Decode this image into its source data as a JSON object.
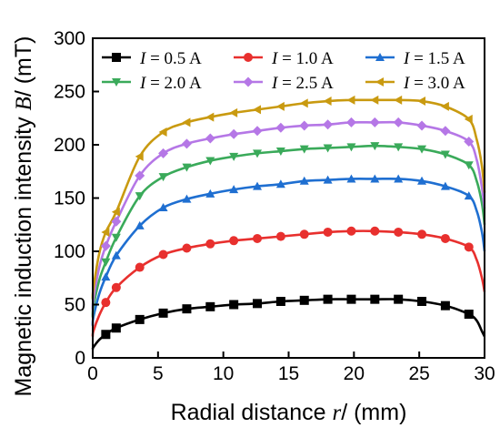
{
  "chart_data": {
    "type": "line",
    "xlabel": {
      "prefix": "Radial distance ",
      "var": "r",
      "suffix": "/ (mm)"
    },
    "ylabel": {
      "prefix": "Magnetic induction intensity ",
      "var": "B",
      "suffix": "/ (mT)"
    },
    "xlim": [
      0,
      30
    ],
    "ylim": [
      0,
      300
    ],
    "xticks": [
      0,
      5,
      10,
      15,
      20,
      25,
      30
    ],
    "yticks": [
      0,
      50,
      100,
      150,
      200,
      250,
      300
    ],
    "grid": false,
    "legend_position": "top",
    "x": [
      0,
      0.05,
      0.5,
      1.0,
      1.8,
      3.6,
      5.4,
      7.2,
      9.0,
      10.8,
      12.6,
      14.4,
      16.2,
      18.0,
      19.8,
      21.6,
      23.4,
      25.2,
      27.0,
      28.8,
      29.4,
      29.8,
      30.0
    ],
    "series": [
      {
        "name": "I = 0.5 A",
        "name_var": "I",
        "name_rest": " = 0.5 A",
        "marker": "square",
        "color": "#000000",
        "values": [
          8,
          10,
          17,
          22,
          28,
          36,
          42,
          46,
          48,
          50,
          51,
          53,
          54,
          55,
          55,
          55,
          55,
          53,
          49,
          41,
          35,
          25,
          20
        ]
      },
      {
        "name": "I = 1.0 A",
        "name_var": "I",
        "name_rest": " = 1.0 A",
        "marker": "circle",
        "color": "#e8302e",
        "values": [
          20,
          25,
          40,
          52,
          66,
          85,
          97,
          103,
          107,
          110,
          112,
          114,
          116,
          118,
          119,
          119,
          118,
          116,
          112,
          104,
          92,
          75,
          62
        ]
      },
      {
        "name": "I = 1.5 A",
        "name_var": "I",
        "name_rest": " = 1.5 A",
        "marker": "triangle-up",
        "color": "#1f6fd1",
        "values": [
          30,
          38,
          60,
          76,
          96,
          124,
          141,
          149,
          154,
          158,
          161,
          163,
          166,
          167,
          168,
          168,
          168,
          166,
          161,
          152,
          138,
          118,
          100
        ]
      },
      {
        "name": "I = 2.0 A",
        "name_var": "I",
        "name_rest": " = 2.0 A",
        "marker": "triangle-down",
        "color": "#3aaa5a",
        "values": [
          38,
          48,
          73,
          90,
          113,
          152,
          170,
          179,
          185,
          189,
          192,
          194,
          196,
          197,
          198,
          199,
          198,
          196,
          191,
          181,
          166,
          145,
          125
        ]
      },
      {
        "name": "I = 2.5 A",
        "name_var": "I",
        "name_rest": " = 2.5 A",
        "marker": "diamond",
        "color": "#b577e6",
        "values": [
          45,
          55,
          85,
          105,
          128,
          171,
          192,
          201,
          206,
          210,
          213,
          216,
          218,
          219,
          221,
          221,
          221,
          218,
          213,
          203,
          186,
          160,
          140
        ]
      },
      {
        "name": "I = 3.0 A",
        "name_var": "I",
        "name_rest": " = 3.0 A",
        "marker": "triangle-left",
        "color": "#c99a10",
        "values": [
          55,
          65,
          98,
          118,
          137,
          189,
          212,
          221,
          226,
          230,
          233,
          236,
          239,
          241,
          242,
          242,
          242,
          241,
          236,
          224,
          205,
          180,
          155
        ]
      }
    ]
  }
}
